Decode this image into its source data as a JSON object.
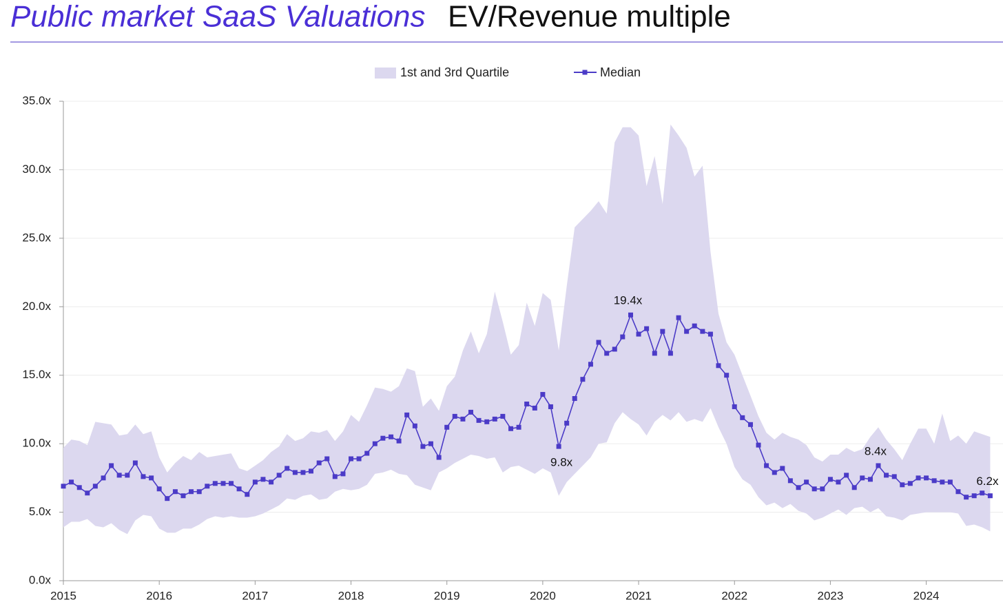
{
  "chart_data": {
    "type": "line",
    "title": "Public market SaaS Valuations",
    "subtitle": "EV/Revenue multiple",
    "x": [
      2015,
      2015.083,
      2015.167,
      2015.25,
      2015.333,
      2015.417,
      2015.5,
      2015.583,
      2015.667,
      2015.75,
      2015.833,
      2015.917,
      2016,
      2016.083,
      2016.167,
      2016.25,
      2016.333,
      2016.417,
      2016.5,
      2016.583,
      2016.667,
      2016.75,
      2016.833,
      2016.917,
      2017,
      2017.083,
      2017.167,
      2017.25,
      2017.333,
      2017.417,
      2017.5,
      2017.583,
      2017.667,
      2017.75,
      2017.833,
      2017.917,
      2018,
      2018.083,
      2018.167,
      2018.25,
      2018.333,
      2018.417,
      2018.5,
      2018.583,
      2018.667,
      2018.75,
      2018.833,
      2018.917,
      2019,
      2019.083,
      2019.167,
      2019.25,
      2019.333,
      2019.417,
      2019.5,
      2019.583,
      2019.667,
      2019.75,
      2019.833,
      2019.917,
      2020,
      2020.083,
      2020.167,
      2020.25,
      2020.333,
      2020.417,
      2020.5,
      2020.583,
      2020.667,
      2020.75,
      2020.833,
      2020.917,
      2021,
      2021.083,
      2021.167,
      2021.25,
      2021.333,
      2021.417,
      2021.5,
      2021.583,
      2021.667,
      2021.75,
      2021.833,
      2021.917,
      2022,
      2022.083,
      2022.167,
      2022.25,
      2022.333,
      2022.417,
      2022.5,
      2022.583,
      2022.667,
      2022.75,
      2022.833,
      2022.917,
      2023,
      2023.083,
      2023.167,
      2023.25,
      2023.333,
      2023.417,
      2023.5,
      2023.583,
      2023.667,
      2023.75,
      2023.833,
      2023.917,
      2024,
      2024.083,
      2024.167,
      2024.25,
      2024.333,
      2024.417,
      2024.5,
      2024.583,
      2024.667
    ],
    "series": [
      {
        "name": "Median",
        "color": "#4b3bc7",
        "values": [
          6.9,
          7.2,
          6.8,
          6.4,
          6.9,
          7.5,
          8.4,
          7.7,
          7.7,
          8.6,
          7.6,
          7.5,
          6.7,
          6.0,
          6.5,
          6.2,
          6.5,
          6.5,
          6.9,
          7.1,
          7.1,
          7.1,
          6.7,
          6.3,
          7.2,
          7.4,
          7.2,
          7.7,
          8.2,
          7.9,
          7.9,
          8.0,
          8.6,
          8.9,
          7.6,
          7.8,
          8.9,
          8.9,
          9.3,
          10.0,
          10.4,
          10.5,
          10.2,
          12.1,
          11.3,
          9.8,
          10.0,
          9.0,
          11.2,
          12.0,
          11.8,
          12.3,
          11.7,
          11.6,
          11.8,
          12.0,
          11.1,
          11.2,
          12.9,
          12.6,
          13.6,
          12.7,
          9.8,
          11.5,
          13.3,
          14.7,
          15.8,
          17.4,
          16.6,
          16.9,
          17.8,
          19.4,
          18.0,
          18.4,
          16.6,
          18.2,
          16.6,
          19.2,
          18.2,
          18.6,
          18.2,
          18.0,
          15.7,
          15.0,
          12.7,
          11.9,
          11.4,
          9.9,
          8.4,
          7.9,
          8.2,
          7.3,
          6.8,
          7.2,
          6.7,
          6.7,
          7.4,
          7.2,
          7.7,
          6.8,
          7.5,
          7.4,
          8.4,
          7.7,
          7.6,
          7.0,
          7.1,
          7.5,
          7.5,
          7.3,
          7.2,
          7.2,
          6.5,
          6.1,
          6.2,
          6.4,
          6.2
        ]
      }
    ],
    "band": {
      "name": "1st and 3rd Quartile",
      "color": "#dcd8ef",
      "upper": [
        9.7,
        10.3,
        10.2,
        9.9,
        11.6,
        11.5,
        11.4,
        10.6,
        10.7,
        11.4,
        10.7,
        10.9,
        9.0,
        7.9,
        8.6,
        9.1,
        8.8,
        9.4,
        9.0,
        9.1,
        9.2,
        9.3,
        8.2,
        8.0,
        8.4,
        8.8,
        9.4,
        9.8,
        10.7,
        10.2,
        10.4,
        10.9,
        10.8,
        11.0,
        10.2,
        10.9,
        12.1,
        11.6,
        12.8,
        14.1,
        14.0,
        13.8,
        14.2,
        15.5,
        15.3,
        12.7,
        13.3,
        12.4,
        14.2,
        14.9,
        16.8,
        18.2,
        16.6,
        18.0,
        21.1,
        18.9,
        16.5,
        17.2,
        20.3,
        18.6,
        21.0,
        20.5,
        16.8,
        21.5,
        25.8,
        26.4,
        27.0,
        27.7,
        26.8,
        32.0,
        33.1,
        33.1,
        32.5,
        28.8,
        31.0,
        27.5,
        33.3,
        32.5,
        31.6,
        29.5,
        30.3,
        24.0,
        19.5,
        17.4,
        16.5,
        15.0,
        13.5,
        12.0,
        10.8,
        10.3,
        10.8,
        10.5,
        10.3,
        9.9,
        9.0,
        8.7,
        9.2,
        9.2,
        9.7,
        9.4,
        9.6,
        10.5,
        11.2,
        10.3,
        9.6,
        8.8,
        10.0,
        11.1,
        11.1,
        10.0,
        12.2,
        10.2,
        10.6,
        10.0,
        10.9,
        10.7,
        10.5
      ],
      "lower": [
        3.9,
        4.3,
        4.3,
        4.5,
        4.0,
        3.9,
        4.2,
        3.7,
        3.4,
        4.4,
        4.8,
        4.7,
        3.8,
        3.5,
        3.5,
        3.8,
        3.8,
        4.1,
        4.5,
        4.7,
        4.6,
        4.7,
        4.6,
        4.6,
        4.7,
        4.9,
        5.2,
        5.5,
        6.0,
        5.9,
        6.2,
        6.3,
        5.9,
        6.0,
        6.5,
        6.7,
        6.6,
        6.7,
        7.0,
        7.8,
        7.9,
        8.1,
        7.8,
        7.7,
        7.0,
        6.8,
        6.6,
        7.9,
        8.2,
        8.6,
        8.9,
        9.2,
        9.1,
        8.9,
        9.0,
        7.9,
        8.3,
        8.4,
        8.1,
        7.8,
        8.2,
        7.9,
        6.2,
        7.2,
        7.8,
        8.4,
        9.0,
        10.0,
        10.1,
        11.5,
        12.3,
        11.8,
        11.4,
        10.6,
        11.6,
        12.1,
        11.7,
        12.3,
        11.6,
        11.8,
        11.6,
        12.6,
        11.2,
        10.0,
        8.3,
        7.4,
        7.0,
        6.1,
        5.5,
        5.7,
        5.3,
        5.6,
        5.1,
        4.9,
        4.4,
        4.6,
        4.9,
        5.2,
        4.8,
        5.3,
        5.4,
        5.0,
        5.3,
        4.7,
        4.6,
        4.4,
        4.8,
        4.9,
        5.0,
        5.0,
        5.0,
        5.0,
        4.9,
        4.0,
        4.1,
        3.9,
        3.6
      ]
    },
    "annotations": [
      {
        "x": 2020.917,
        "value": 19.4,
        "label": "19.4x"
      },
      {
        "x": 2020.167,
        "value": 9.8,
        "label": "9.8x"
      },
      {
        "x": 2023.5,
        "value": 8.4,
        "label": "8.4x"
      },
      {
        "x": 2024.667,
        "value": 6.2,
        "label": "6.2x"
      }
    ],
    "xlim": [
      2015,
      2024.7
    ],
    "ylim": [
      0,
      35
    ],
    "xticks": [
      2015,
      2016,
      2017,
      2018,
      2019,
      2020,
      2021,
      2022,
      2023,
      2024
    ],
    "yticks": [
      {
        "value": 0,
        "label": "0.0x"
      },
      {
        "value": 5,
        "label": "5.0x"
      },
      {
        "value": 10,
        "label": "10.0x"
      },
      {
        "value": 15,
        "label": "15.0x"
      },
      {
        "value": 20,
        "label": "20.0x"
      },
      {
        "value": 25,
        "label": "25.0x"
      },
      {
        "value": 30,
        "label": "30.0x"
      },
      {
        "value": 35,
        "label": "35.0x"
      }
    ],
    "grid": true
  }
}
